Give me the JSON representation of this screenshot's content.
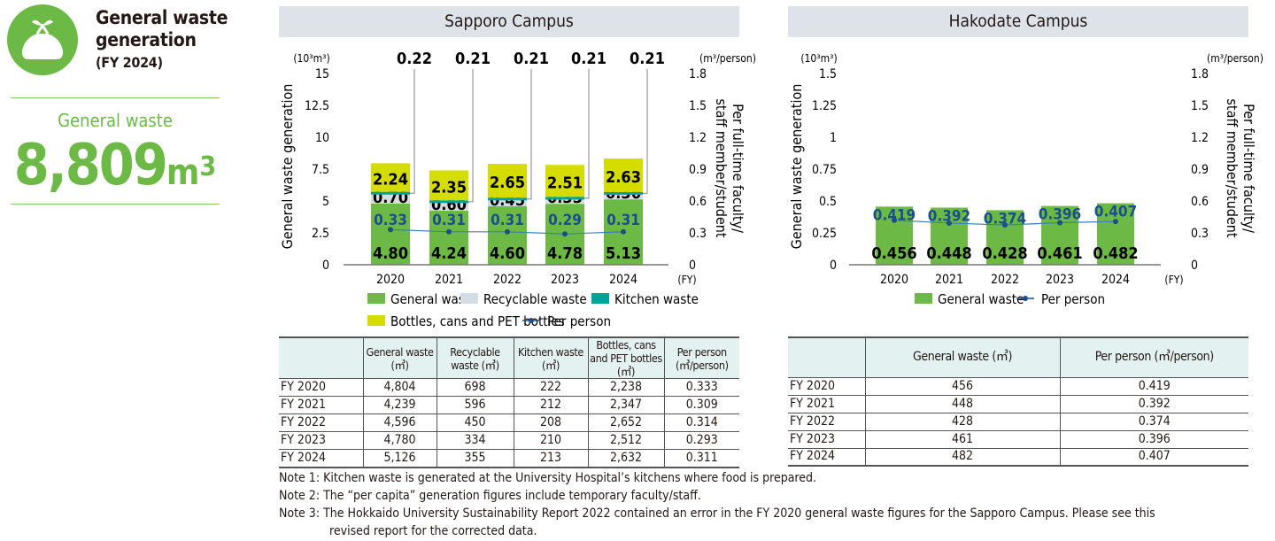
{
  "summary": {
    "title_line1": "General waste",
    "title_line2": "generation",
    "title_sub": "(FY 2024)",
    "label": "General waste",
    "value": "8,809",
    "unit": "m",
    "unit_sup": "3",
    "icon": "garbage-bag-icon"
  },
  "colors": {
    "general": "#6cba45",
    "recyclable": "#d3dde4",
    "kitchen": "#00a29a",
    "bottles": "#d4dc00",
    "per_person": "#1b4f8a",
    "header": "#dde3e8"
  },
  "chart_data": [
    {
      "type": "bar",
      "title": "Sapporo Campus",
      "stacked": true,
      "categories": [
        "2020",
        "2021",
        "2022",
        "2023",
        "2024"
      ],
      "x_unit": "(FY)",
      "ylabel": "General waste generation",
      "y_unit": "(10³m³)",
      "ylim": [
        0,
        15
      ],
      "yticks": [
        "0",
        "2.5",
        "5",
        "7.5",
        "10",
        "12.5",
        "15"
      ],
      "y2label_line1": "Per full-time faculty/",
      "y2label_line2": "staff member/student",
      "y2_unit": "(m³/person)",
      "y2lim": [
        0,
        1.8
      ],
      "y2ticks": [
        "0",
        "0.3",
        "0.6",
        "0.9",
        "1.2",
        "1.5",
        "1.8"
      ],
      "series": [
        {
          "name": "General waste",
          "key": "general",
          "values": [
            4.8,
            4.24,
            4.6,
            4.78,
            5.13
          ],
          "labels": [
            "4.80",
            "4.24",
            "4.60",
            "4.78",
            "5.13"
          ]
        },
        {
          "name": "Recyclable waste",
          "key": "recyclable",
          "values": [
            0.7,
            0.6,
            0.45,
            0.33,
            0.36
          ],
          "labels": [
            "0.70",
            "0.60",
            "0.45",
            "0.33",
            "0.36"
          ]
        },
        {
          "name": "Kitchen waste",
          "key": "kitchen",
          "values": [
            0.22,
            0.21,
            0.21,
            0.21,
            0.21
          ],
          "labels": [
            "0.22",
            "0.21",
            "0.21",
            "0.21",
            "0.21"
          ]
        },
        {
          "name": "Bottles, cans and PET bottles",
          "key": "bottles",
          "values": [
            2.24,
            2.35,
            2.65,
            2.51,
            2.63
          ],
          "labels": [
            "2.24",
            "2.35",
            "2.65",
            "2.51",
            "2.63"
          ]
        }
      ],
      "line": {
        "name": "Per person",
        "axis": "right",
        "values": [
          0.33,
          0.31,
          0.31,
          0.29,
          0.31
        ],
        "labels": [
          "0.33",
          "0.31",
          "0.31",
          "0.29",
          "0.31"
        ]
      },
      "legend": "bottom",
      "grid": false
    },
    {
      "type": "bar",
      "title": "Hakodate Campus",
      "stacked": false,
      "categories": [
        "2020",
        "2021",
        "2022",
        "2023",
        "2024"
      ],
      "x_unit": "(FY)",
      "ylabel": "General waste generation",
      "y_unit": "(10³m³)",
      "ylim": [
        0,
        1.5
      ],
      "yticks": [
        "0",
        "0.25",
        "0.5",
        "0.75",
        "1",
        "1.25",
        "1.5"
      ],
      "y2label_line1": "Per full-time faculty/",
      "y2label_line2": "staff member/student",
      "y2_unit": "(m³/person)",
      "y2lim": [
        0,
        1.8
      ],
      "y2ticks": [
        "0",
        "0.3",
        "0.6",
        "0.9",
        "1.2",
        "1.5",
        "1.8"
      ],
      "series": [
        {
          "name": "General waste",
          "key": "general",
          "values": [
            0.456,
            0.448,
            0.428,
            0.461,
            0.482
          ],
          "labels": [
            "0.456",
            "0.448",
            "0.428",
            "0.461",
            "0.482"
          ]
        }
      ],
      "line": {
        "name": "Per person",
        "axis": "right",
        "values": [
          0.419,
          0.392,
          0.374,
          0.396,
          0.407
        ],
        "labels": [
          "0.419",
          "0.392",
          "0.374",
          "0.396",
          "0.407"
        ]
      },
      "legend": "bottom",
      "grid": false
    }
  ],
  "sapporo_table": {
    "headers": [
      "",
      "General waste (㎥)",
      "Recyclable waste (㎥)",
      "Kitchen waste (㎥)",
      "Bottles, cans and PET bottles (㎥)",
      "Per person (㎥/person)"
    ],
    "rows": [
      [
        "FY 2020",
        "4,804",
        "698",
        "222",
        "2,238",
        "0.333"
      ],
      [
        "FY 2021",
        "4,239",
        "596",
        "212",
        "2,347",
        "0.309"
      ],
      [
        "FY 2022",
        "4,596",
        "450",
        "208",
        "2,652",
        "0.314"
      ],
      [
        "FY 2023",
        "4,780",
        "334",
        "210",
        "2,512",
        "0.293"
      ],
      [
        "FY 2024",
        "5,126",
        "355",
        "213",
        "2,632",
        "0.311"
      ]
    ]
  },
  "hakodate_table": {
    "headers": [
      "",
      "General waste (㎥)",
      "Per person (㎥/person)"
    ],
    "rows": [
      [
        "FY 2020",
        "456",
        "0.419"
      ],
      [
        "FY 2021",
        "448",
        "0.392"
      ],
      [
        "FY 2022",
        "428",
        "0.374"
      ],
      [
        "FY 2023",
        "461",
        "0.396"
      ],
      [
        "FY 2024",
        "482",
        "0.407"
      ]
    ]
  },
  "notes": [
    "Note 1: Kitchen waste is generated at the University Hospital’s kitchens where food is prepared.",
    "Note 2: The “per capita” generation figures include temporary faculty/staff.",
    "Note 3: The Hokkaido University Sustainability Report 2022 contained an error in the FY 2020 general waste figures for the Sapporo Campus. Please see this",
    "revised report for the corrected data."
  ]
}
